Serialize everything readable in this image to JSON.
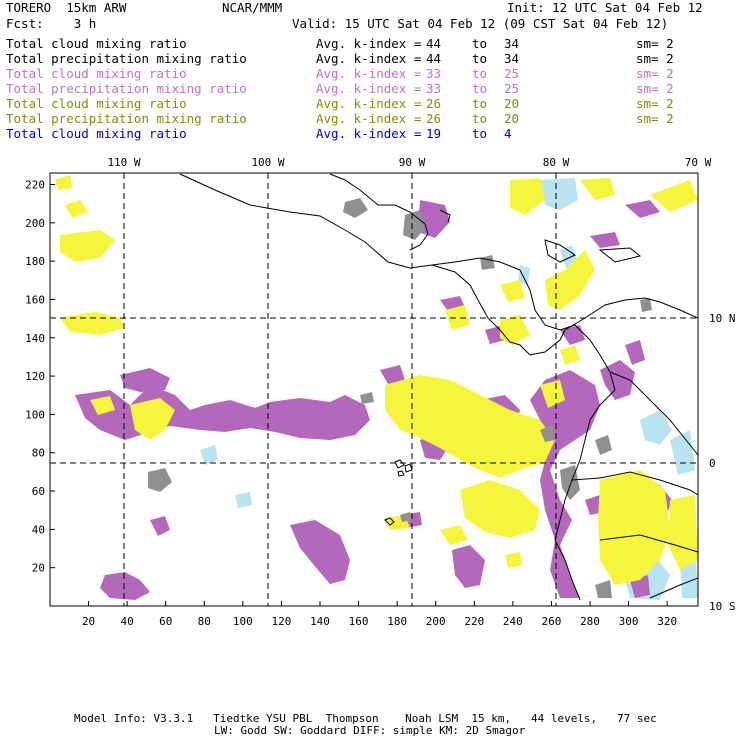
{
  "header": {
    "model": "TORERO  15km ARW",
    "org": "NCAR/MMM",
    "init": "Init: 12 UTC Sat 04 Feb 12",
    "fcst": "Fcst:    3 h",
    "valid": "Valid: 15 UTC Sat 04 Feb 12 (09 CST Sat 04 Feb 12)"
  },
  "legend": [
    {
      "field": "Total cloud mixing ratio",
      "kindex": "Avg. k-index =",
      "from": "44",
      "to_word": "to",
      "to": "34",
      "sm": "sm= 2",
      "color": "#000000"
    },
    {
      "field": "Total precipitation mixing ratio",
      "kindex": "Avg. k-index =",
      "from": "44",
      "to_word": "to",
      "to": "34",
      "sm": "sm= 2",
      "color": "#000000"
    },
    {
      "field": "Total cloud mixing ratio",
      "kindex": "Avg. k-index =",
      "from": "33",
      "to_word": "to",
      "to": "25",
      "sm": "sm= 2",
      "color": "#c070c8"
    },
    {
      "field": "Total precipitation mixing ratio",
      "kindex": "Avg. k-index =",
      "from": "33",
      "to_word": "to",
      "to": "25",
      "sm": "sm= 2",
      "color": "#c070c8"
    },
    {
      "field": "Total cloud mixing ratio",
      "kindex": "Avg. k-index =",
      "from": "26",
      "to_word": "to",
      "to": "20",
      "sm": "sm= 2",
      "color": "#8a8a00"
    },
    {
      "field": "Total precipitation mixing ratio",
      "kindex": "Avg. k-index =",
      "from": "26",
      "to_word": "to",
      "to": "20",
      "sm": "sm= 2",
      "color": "#8a8a00"
    },
    {
      "field": "Total cloud mixing ratio",
      "kindex": "Avg. k-index =",
      "from": "19",
      "to_word": "to",
      "to": "4",
      "sm": "",
      "color": "#0000cc"
    }
  ],
  "map": {
    "lon_labels": [
      "110 W",
      "100 W",
      "90 W",
      "80 W",
      "70 W"
    ],
    "lat_labels": [
      "10 N",
      "0",
      "10 S"
    ],
    "x_ticks": [
      "20",
      "40",
      "60",
      "80",
      "100",
      "120",
      "140",
      "160",
      "180",
      "200",
      "220",
      "240",
      "260",
      "280",
      "300",
      "320"
    ],
    "y_ticks": [
      "20",
      "40",
      "60",
      "80",
      "100",
      "120",
      "140",
      "160",
      "180",
      "200",
      "220"
    ],
    "shading_colors": {
      "k44_34": "#909090",
      "k33_25": "#b468bc",
      "k26_20": "#f5f53c",
      "k19_4": "#b8e4f2"
    }
  },
  "footer": {
    "line1": "Model Info: V3.3.1   Tiedtke YSU PBL  Thompson    Noah LSM  15 km,   44 levels,   77 sec",
    "line2": "LW: Godd SW: Goddard DIFF: simple KM: 2D Smagor"
  }
}
